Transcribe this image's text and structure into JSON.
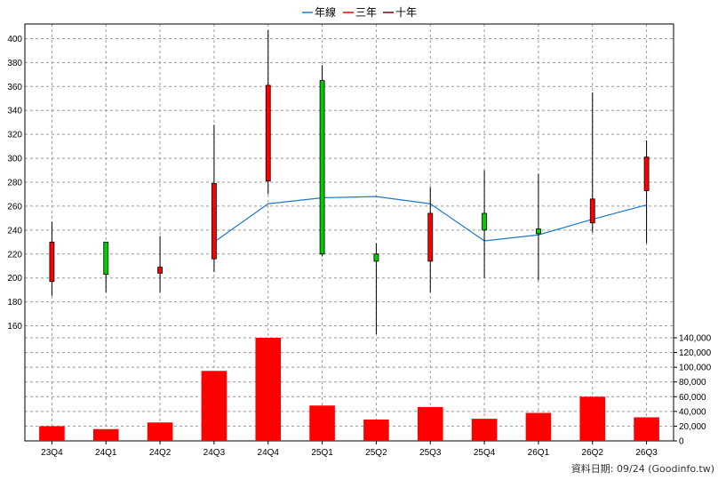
{
  "chart_data": [
    {
      "type": "candlestick",
      "legend": [
        {
          "label": "年線",
          "color": "#1f78c8"
        },
        {
          "label": "三年",
          "color": "#ff0000"
        },
        {
          "label": "十年",
          "color": "#800000"
        }
      ],
      "categories": [
        "23Q4",
        "24Q1",
        "24Q2",
        "24Q3",
        "24Q4",
        "25Q1",
        "25Q2",
        "25Q3",
        "25Q4",
        "26Q1",
        "26Q2",
        "26Q3"
      ],
      "ohlc": [
        {
          "open": 197,
          "high": 247,
          "low": 185,
          "close": 230
        },
        {
          "open": 230,
          "high": 230,
          "low": 188,
          "close": 203
        },
        {
          "open": 204,
          "high": 235,
          "low": 188,
          "close": 209
        },
        {
          "open": 216,
          "high": 328,
          "low": 205,
          "close": 279
        },
        {
          "open": 281,
          "high": 407,
          "low": 270,
          "close": 361
        },
        {
          "open": 365,
          "high": 378,
          "low": 218,
          "close": 220
        },
        {
          "open": 220,
          "high": 229,
          "low": 153,
          "close": 214
        },
        {
          "open": 214,
          "high": 276,
          "low": 188,
          "close": 254
        },
        {
          "open": 254,
          "high": 290,
          "low": 200,
          "close": 240
        },
        {
          "open": 241,
          "high": 287,
          "low": 198,
          "close": 237
        },
        {
          "open": 246,
          "high": 355,
          "low": 238,
          "close": 266
        },
        {
          "open": 273,
          "high": 315,
          "low": 229,
          "close": 301
        }
      ],
      "up_color": "#ff0000",
      "down_color": "#00cc00",
      "line_series": {
        "name": "年線",
        "color": "#1f78c8",
        "values": [
          null,
          null,
          null,
          230,
          262,
          267,
          268,
          262,
          231,
          236,
          249,
          261
        ]
      },
      "ylim": [
        150,
        410
      ],
      "yticks": [
        160,
        180,
        200,
        220,
        240,
        260,
        280,
        300,
        320,
        340,
        360,
        380,
        400
      ],
      "grid": true
    },
    {
      "type": "bar",
      "categories": [
        "23Q4",
        "24Q1",
        "24Q2",
        "24Q3",
        "24Q4",
        "25Q1",
        "25Q2",
        "25Q3",
        "25Q4",
        "26Q1",
        "26Q2",
        "26Q3"
      ],
      "values": [
        20000,
        16000,
        25000,
        95000,
        140000,
        48000,
        29000,
        46000,
        30000,
        38000,
        60000,
        32000
      ],
      "color": "#ff0000",
      "ylim": [
        0,
        140000
      ],
      "yticks": [
        "0",
        "20,000",
        "40,000",
        "60,000",
        "80,000",
        "100,000",
        "120,000",
        "140,000"
      ],
      "ytick_values": [
        0,
        20000,
        40000,
        60000,
        80000,
        100000,
        120000,
        140000
      ],
      "grid": true
    }
  ],
  "footer": "資料日期: 09/24  (Goodinfo.tw)"
}
